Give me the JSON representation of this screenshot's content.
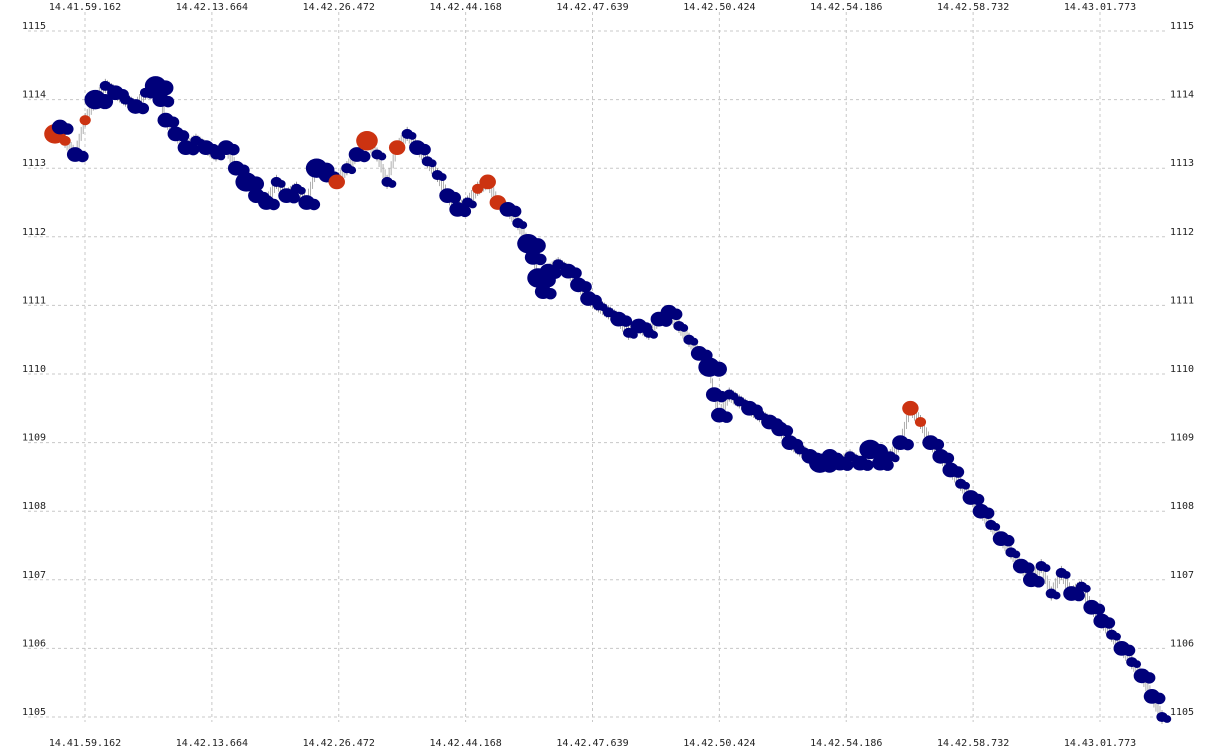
{
  "chart_data": {
    "type": "scatter",
    "title": "",
    "xlabel": "",
    "ylabel": "",
    "x_ticks": [
      "14.41.59.162",
      "14.42.13.664",
      "14.42.26.472",
      "14.42.44.168",
      "14.42.47.639",
      "14.42.50.424",
      "14.42.54.186",
      "14.42.58.732",
      "14.43.01.773"
    ],
    "y_ticks": [
      1115,
      1114,
      1113,
      1112,
      1111,
      1110,
      1109,
      1108,
      1107,
      1106,
      1105
    ],
    "ylim": [
      1105,
      1115
    ],
    "grid": true,
    "colors": {
      "buy": "#cc3311",
      "sell": "#00007a",
      "range": "#9a9a9a",
      "grid": "#c8c8c8"
    },
    "series": [
      {
        "points": [
          [
            0.0,
            1113.5,
            3
          ],
          [
            0.5,
            1113.6,
            2
          ],
          [
            1.0,
            1113.4,
            1
          ],
          [
            2.0,
            1113.2,
            2
          ],
          [
            3.0,
            1113.7,
            1
          ],
          [
            4.0,
            1114.0,
            3
          ],
          [
            5.0,
            1114.2,
            1
          ],
          [
            6.0,
            1114.1,
            2
          ],
          [
            7.0,
            1114.0,
            1
          ],
          [
            8.0,
            1113.9,
            2
          ],
          [
            9.0,
            1114.1,
            1
          ],
          [
            10.0,
            1114.2,
            3
          ],
          [
            10.5,
            1114.0,
            2
          ],
          [
            11.0,
            1113.7,
            2
          ],
          [
            12.0,
            1113.5,
            2
          ],
          [
            13.0,
            1113.3,
            2
          ],
          [
            14.0,
            1113.4,
            1
          ],
          [
            15.0,
            1113.3,
            2
          ],
          [
            16.0,
            1113.2,
            1
          ],
          [
            17.0,
            1113.3,
            2
          ],
          [
            18.0,
            1113.0,
            2
          ],
          [
            19.0,
            1112.8,
            3
          ],
          [
            20.0,
            1112.6,
            2
          ],
          [
            21.0,
            1112.5,
            2
          ],
          [
            22.0,
            1112.8,
            1
          ],
          [
            23.0,
            1112.6,
            2
          ],
          [
            24.0,
            1112.7,
            1
          ],
          [
            25.0,
            1112.5,
            2
          ],
          [
            26.0,
            1113.0,
            3
          ],
          [
            27.0,
            1112.9,
            2
          ],
          [
            28.0,
            1112.8,
            2
          ],
          [
            29.0,
            1113.0,
            1
          ],
          [
            30.0,
            1113.2,
            2
          ],
          [
            31.0,
            1113.4,
            3
          ],
          [
            32.0,
            1113.2,
            1
          ],
          [
            33.0,
            1112.8,
            1
          ],
          [
            34.0,
            1113.3,
            2
          ],
          [
            35.0,
            1113.5,
            1
          ],
          [
            36.0,
            1113.3,
            2
          ],
          [
            37.0,
            1113.1,
            1
          ],
          [
            38.0,
            1112.9,
            1
          ],
          [
            39.0,
            1112.6,
            2
          ],
          [
            40.0,
            1112.4,
            2
          ],
          [
            41.0,
            1112.5,
            1
          ],
          [
            42.0,
            1112.7,
            1
          ],
          [
            43.0,
            1112.8,
            2
          ],
          [
            44.0,
            1112.5,
            2
          ],
          [
            45.0,
            1112.4,
            2
          ],
          [
            46.0,
            1112.2,
            1
          ],
          [
            47.0,
            1111.9,
            3
          ],
          [
            47.5,
            1111.7,
            2
          ],
          [
            48.0,
            1111.4,
            3
          ],
          [
            48.5,
            1111.2,
            2
          ],
          [
            49.0,
            1111.5,
            2
          ],
          [
            50.0,
            1111.6,
            1
          ],
          [
            51.0,
            1111.5,
            2
          ],
          [
            52.0,
            1111.3,
            2
          ],
          [
            53.0,
            1111.1,
            2
          ],
          [
            54.0,
            1111.0,
            1
          ],
          [
            55.0,
            1110.9,
            1
          ],
          [
            56.0,
            1110.8,
            2
          ],
          [
            57.0,
            1110.6,
            1
          ],
          [
            58.0,
            1110.7,
            2
          ],
          [
            59.0,
            1110.6,
            1
          ],
          [
            60.0,
            1110.8,
            2
          ],
          [
            61.0,
            1110.9,
            2
          ],
          [
            62.0,
            1110.7,
            1
          ],
          [
            63.0,
            1110.5,
            1
          ],
          [
            64.0,
            1110.3,
            2
          ],
          [
            65.0,
            1110.1,
            3
          ],
          [
            65.5,
            1109.7,
            2
          ],
          [
            66.0,
            1109.4,
            2
          ],
          [
            67.0,
            1109.7,
            1
          ],
          [
            68.0,
            1109.6,
            1
          ],
          [
            69.0,
            1109.5,
            2
          ],
          [
            70.0,
            1109.4,
            1
          ],
          [
            71.0,
            1109.3,
            2
          ],
          [
            72.0,
            1109.2,
            2
          ],
          [
            73.0,
            1109.0,
            2
          ],
          [
            74.0,
            1108.9,
            1
          ],
          [
            75.0,
            1108.8,
            2
          ],
          [
            76.0,
            1108.7,
            3
          ],
          [
            77.0,
            1108.8,
            2
          ],
          [
            78.0,
            1108.7,
            2
          ],
          [
            79.0,
            1108.8,
            1
          ],
          [
            80.0,
            1108.7,
            2
          ],
          [
            81.0,
            1108.9,
            3
          ],
          [
            82.0,
            1108.7,
            2
          ],
          [
            83.0,
            1108.8,
            1
          ],
          [
            84.0,
            1109.0,
            2
          ],
          [
            85.0,
            1109.5,
            2
          ],
          [
            86.0,
            1109.3,
            1
          ],
          [
            87.0,
            1109.0,
            2
          ],
          [
            88.0,
            1108.8,
            2
          ],
          [
            89.0,
            1108.6,
            2
          ],
          [
            90.0,
            1108.4,
            1
          ],
          [
            91.0,
            1108.2,
            2
          ],
          [
            92.0,
            1108.0,
            2
          ],
          [
            93.0,
            1107.8,
            1
          ],
          [
            94.0,
            1107.6,
            2
          ],
          [
            95.0,
            1107.4,
            1
          ],
          [
            96.0,
            1107.2,
            2
          ],
          [
            97.0,
            1107.0,
            2
          ],
          [
            98.0,
            1107.2,
            1
          ],
          [
            99.0,
            1106.8,
            1
          ],
          [
            100.0,
            1107.1,
            1
          ],
          [
            101.0,
            1106.8,
            2
          ],
          [
            102.0,
            1106.9,
            1
          ],
          [
            103.0,
            1106.6,
            2
          ],
          [
            104.0,
            1106.4,
            2
          ],
          [
            105.0,
            1106.2,
            1
          ],
          [
            106.0,
            1106.0,
            2
          ],
          [
            107.0,
            1105.8,
            1
          ],
          [
            108.0,
            1105.6,
            2
          ],
          [
            109.0,
            1105.3,
            2
          ],
          [
            110.0,
            1105.0,
            1
          ]
        ]
      }
    ]
  }
}
